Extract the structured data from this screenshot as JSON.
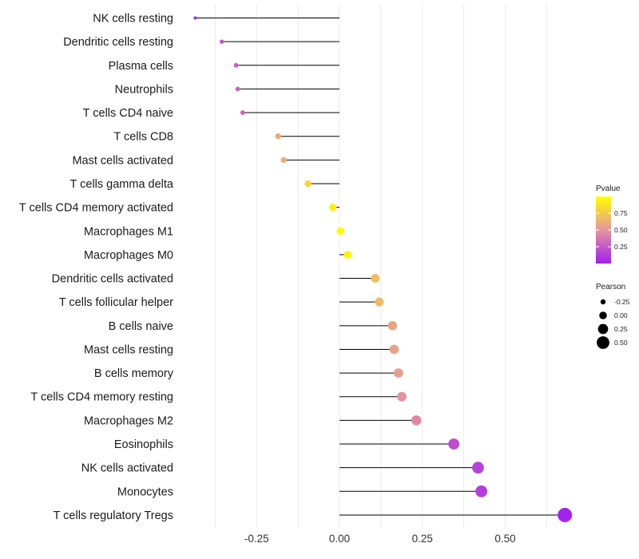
{
  "chart_data": {
    "type": "lollipop",
    "title": "",
    "xlabel": "",
    "ylabel": "",
    "xlim": [
      -0.5,
      0.7
    ],
    "xticks": [
      {
        "value": -0.25,
        "label": "-0.25"
      },
      {
        "value": 0.0,
        "label": "0.00"
      },
      {
        "value": 0.25,
        "label": "0.25"
      },
      {
        "value": 0.5,
        "label": "0.50"
      }
    ],
    "gridlines_x": [
      -0.375,
      -0.25,
      -0.125,
      0.0,
      0.125,
      0.25,
      0.375,
      0.5,
      0.625
    ],
    "categories": [
      "NK cells resting",
      "Dendritic cells resting",
      "Plasma cells",
      "Neutrophils",
      "T cells CD4 naive",
      "T cells CD8",
      "Mast cells activated",
      "T cells gamma delta",
      "T cells CD4 memory activated",
      "Macrophages M1",
      "Macrophages M0",
      "Dendritic cells activated",
      "T cells follicular helper",
      "B cells naive",
      "Mast cells resting",
      "B cells memory",
      "T cells CD4 memory resting",
      "Macrophages M2",
      "Eosinophils",
      "NK cells activated",
      "Monocytes",
      "T cells regulatory  Tregs"
    ],
    "pearson": [
      -0.435,
      -0.355,
      -0.312,
      -0.307,
      -0.292,
      -0.185,
      -0.168,
      -0.095,
      -0.02,
      0.003,
      0.025,
      0.108,
      0.12,
      0.16,
      0.165,
      0.178,
      0.188,
      0.232,
      0.345,
      0.418,
      0.428,
      0.68
    ],
    "pvalue": [
      0.05,
      0.22,
      0.27,
      0.28,
      0.3,
      0.6,
      0.62,
      0.82,
      0.93,
      0.99,
      0.95,
      0.7,
      0.68,
      0.58,
      0.56,
      0.54,
      0.5,
      0.45,
      0.2,
      0.15,
      0.13,
      0.02
    ],
    "legend": {
      "color_title": "Pvalue",
      "color_ticks": [
        {
          "value": 0.25,
          "label": "0.25"
        },
        {
          "value": 0.5,
          "label": "0.50"
        },
        {
          "value": 0.75,
          "label": "0.75"
        }
      ],
      "color_range": [
        0.0,
        1.0
      ],
      "color_low": "#a020f0",
      "color_mid": "#e6949e",
      "color_high": "#ffff00",
      "size_title": "Pearson",
      "size_entries": [
        {
          "value": -0.25,
          "label": "-0.25"
        },
        {
          "value": 0.0,
          "label": "0.00"
        },
        {
          "value": 0.25,
          "label": "0.25"
        },
        {
          "value": 0.5,
          "label": "0.50"
        }
      ],
      "placement": "right"
    },
    "colors": {
      "stem": "#000000",
      "grid": "#ebebeb",
      "background": "#ffffff"
    }
  }
}
